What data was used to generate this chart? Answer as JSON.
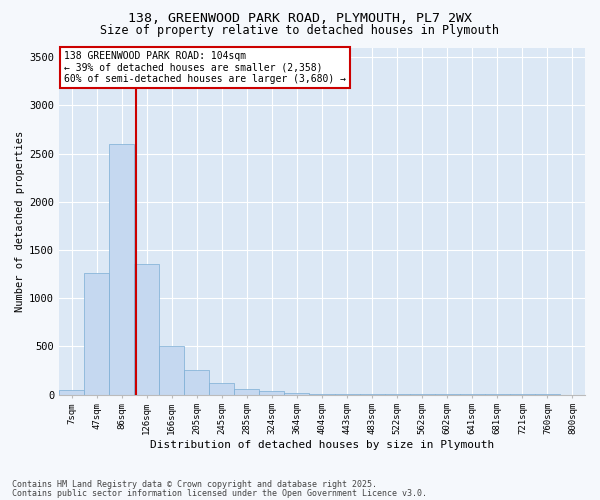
{
  "title_line1": "138, GREENWOOD PARK ROAD, PLYMOUTH, PL7 2WX",
  "title_line2": "Size of property relative to detached houses in Plymouth",
  "xlabel": "Distribution of detached houses by size in Plymouth",
  "ylabel": "Number of detached properties",
  "bar_color": "#c5d8f0",
  "bar_edge_color": "#7aadd4",
  "fig_bg_color": "#f5f8fc",
  "axes_bg_color": "#dce8f5",
  "grid_color": "#ffffff",
  "bin_labels": [
    "7sqm",
    "47sqm",
    "86sqm",
    "126sqm",
    "166sqm",
    "205sqm",
    "245sqm",
    "285sqm",
    "324sqm",
    "364sqm",
    "404sqm",
    "443sqm",
    "483sqm",
    "522sqm",
    "562sqm",
    "602sqm",
    "641sqm",
    "681sqm",
    "721sqm",
    "760sqm",
    "800sqm"
  ],
  "bar_values": [
    50,
    1260,
    2600,
    1350,
    500,
    250,
    115,
    55,
    35,
    20,
    10,
    5,
    5,
    3,
    3,
    2,
    2,
    1,
    1,
    1,
    0
  ],
  "red_line_x": 2.58,
  "ylim": [
    0,
    3600
  ],
  "yticks": [
    0,
    500,
    1000,
    1500,
    2000,
    2500,
    3000,
    3500
  ],
  "annotation_text": "138 GREENWOOD PARK ROAD: 104sqm\n← 39% of detached houses are smaller (2,358)\n60% of semi-detached houses are larger (3,680) →",
  "annotation_box_color": "#ffffff",
  "annotation_border_color": "#cc0000",
  "footnote_line1": "Contains HM Land Registry data © Crown copyright and database right 2025.",
  "footnote_line2": "Contains public sector information licensed under the Open Government Licence v3.0."
}
